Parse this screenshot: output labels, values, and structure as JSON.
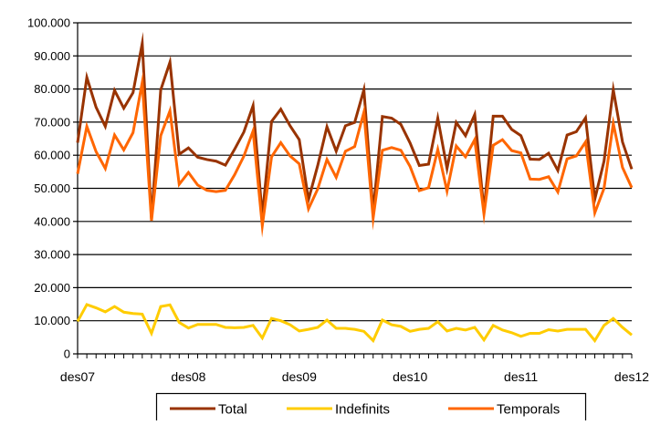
{
  "chart_data": {
    "type": "line",
    "title": "",
    "xlabel": "",
    "ylabel": "",
    "ylim": [
      0,
      100000
    ],
    "grid": "horizontal",
    "legend_position": "bottom",
    "y_ticks": [
      "0",
      "10.000",
      "20.000",
      "30.000",
      "40.000",
      "50.000",
      "60.000",
      "70.000",
      "80.000",
      "90.000",
      "100.000"
    ],
    "x_tick_labels": [
      {
        "label": "des07",
        "month": 0
      },
      {
        "label": "des08",
        "month": 12
      },
      {
        "label": "des09",
        "month": 24
      },
      {
        "label": "des10",
        "month": 36
      },
      {
        "label": "des11",
        "month": 48
      },
      {
        "label": "des12",
        "month": 60
      }
    ],
    "x_months": 60,
    "series": [
      {
        "name": "Total",
        "color": "#993300",
        "values": [
          63800,
          83500,
          74500,
          68700,
          79600,
          74200,
          78900,
          93800,
          40800,
          79700,
          88100,
          60300,
          62200,
          59400,
          58700,
          58200,
          57000,
          61800,
          67000,
          75000,
          41600,
          70200,
          73900,
          68900,
          64700,
          46600,
          56900,
          68600,
          61200,
          68900,
          69900,
          79800,
          42900,
          71700,
          71200,
          69300,
          63700,
          56900,
          57300,
          71200,
          56000,
          69900,
          65900,
          72300,
          43200,
          71800,
          71800,
          67800,
          65900,
          58800,
          58700,
          60600,
          55400,
          66100,
          67100,
          71300,
          46700,
          58200,
          79800,
          64000,
          55800
        ]
      },
      {
        "name": "Indefinits",
        "color": "#ffcc00",
        "values": [
          9800,
          14900,
          13900,
          12700,
          14300,
          12600,
          12200,
          12000,
          6200,
          14300,
          14800,
          9500,
          7800,
          8900,
          8900,
          8900,
          8000,
          7900,
          8000,
          8600,
          4800,
          10700,
          10000,
          8800,
          6900,
          7400,
          8000,
          10200,
          7700,
          7700,
          7400,
          6800,
          4000,
          10200,
          8800,
          8300,
          6800,
          7400,
          7700,
          9700,
          6900,
          7700,
          7200,
          8000,
          4200,
          8600,
          7200,
          6400,
          5300,
          6200,
          6200,
          7300,
          6900,
          7400,
          7400,
          7400,
          4000,
          8600,
          10700,
          8000,
          5700
        ]
      },
      {
        "name": "Temporals",
        "color": "#ff6600",
        "values": [
          54400,
          68700,
          61100,
          56000,
          66100,
          61600,
          66800,
          82000,
          40200,
          65900,
          73400,
          51200,
          54800,
          51000,
          49400,
          49000,
          49400,
          54100,
          59700,
          67300,
          38700,
          59500,
          63800,
          59800,
          57400,
          43800,
          49800,
          58700,
          53300,
          61200,
          62600,
          73000,
          41000,
          61500,
          62300,
          61500,
          56600,
          49300,
          50200,
          61700,
          49200,
          62800,
          59500,
          64700,
          42200,
          63000,
          64700,
          61400,
          60700,
          52800,
          52700,
          53500,
          48900,
          58900,
          59800,
          64000,
          42600,
          50000,
          69600,
          56300,
          50200
        ]
      }
    ]
  }
}
